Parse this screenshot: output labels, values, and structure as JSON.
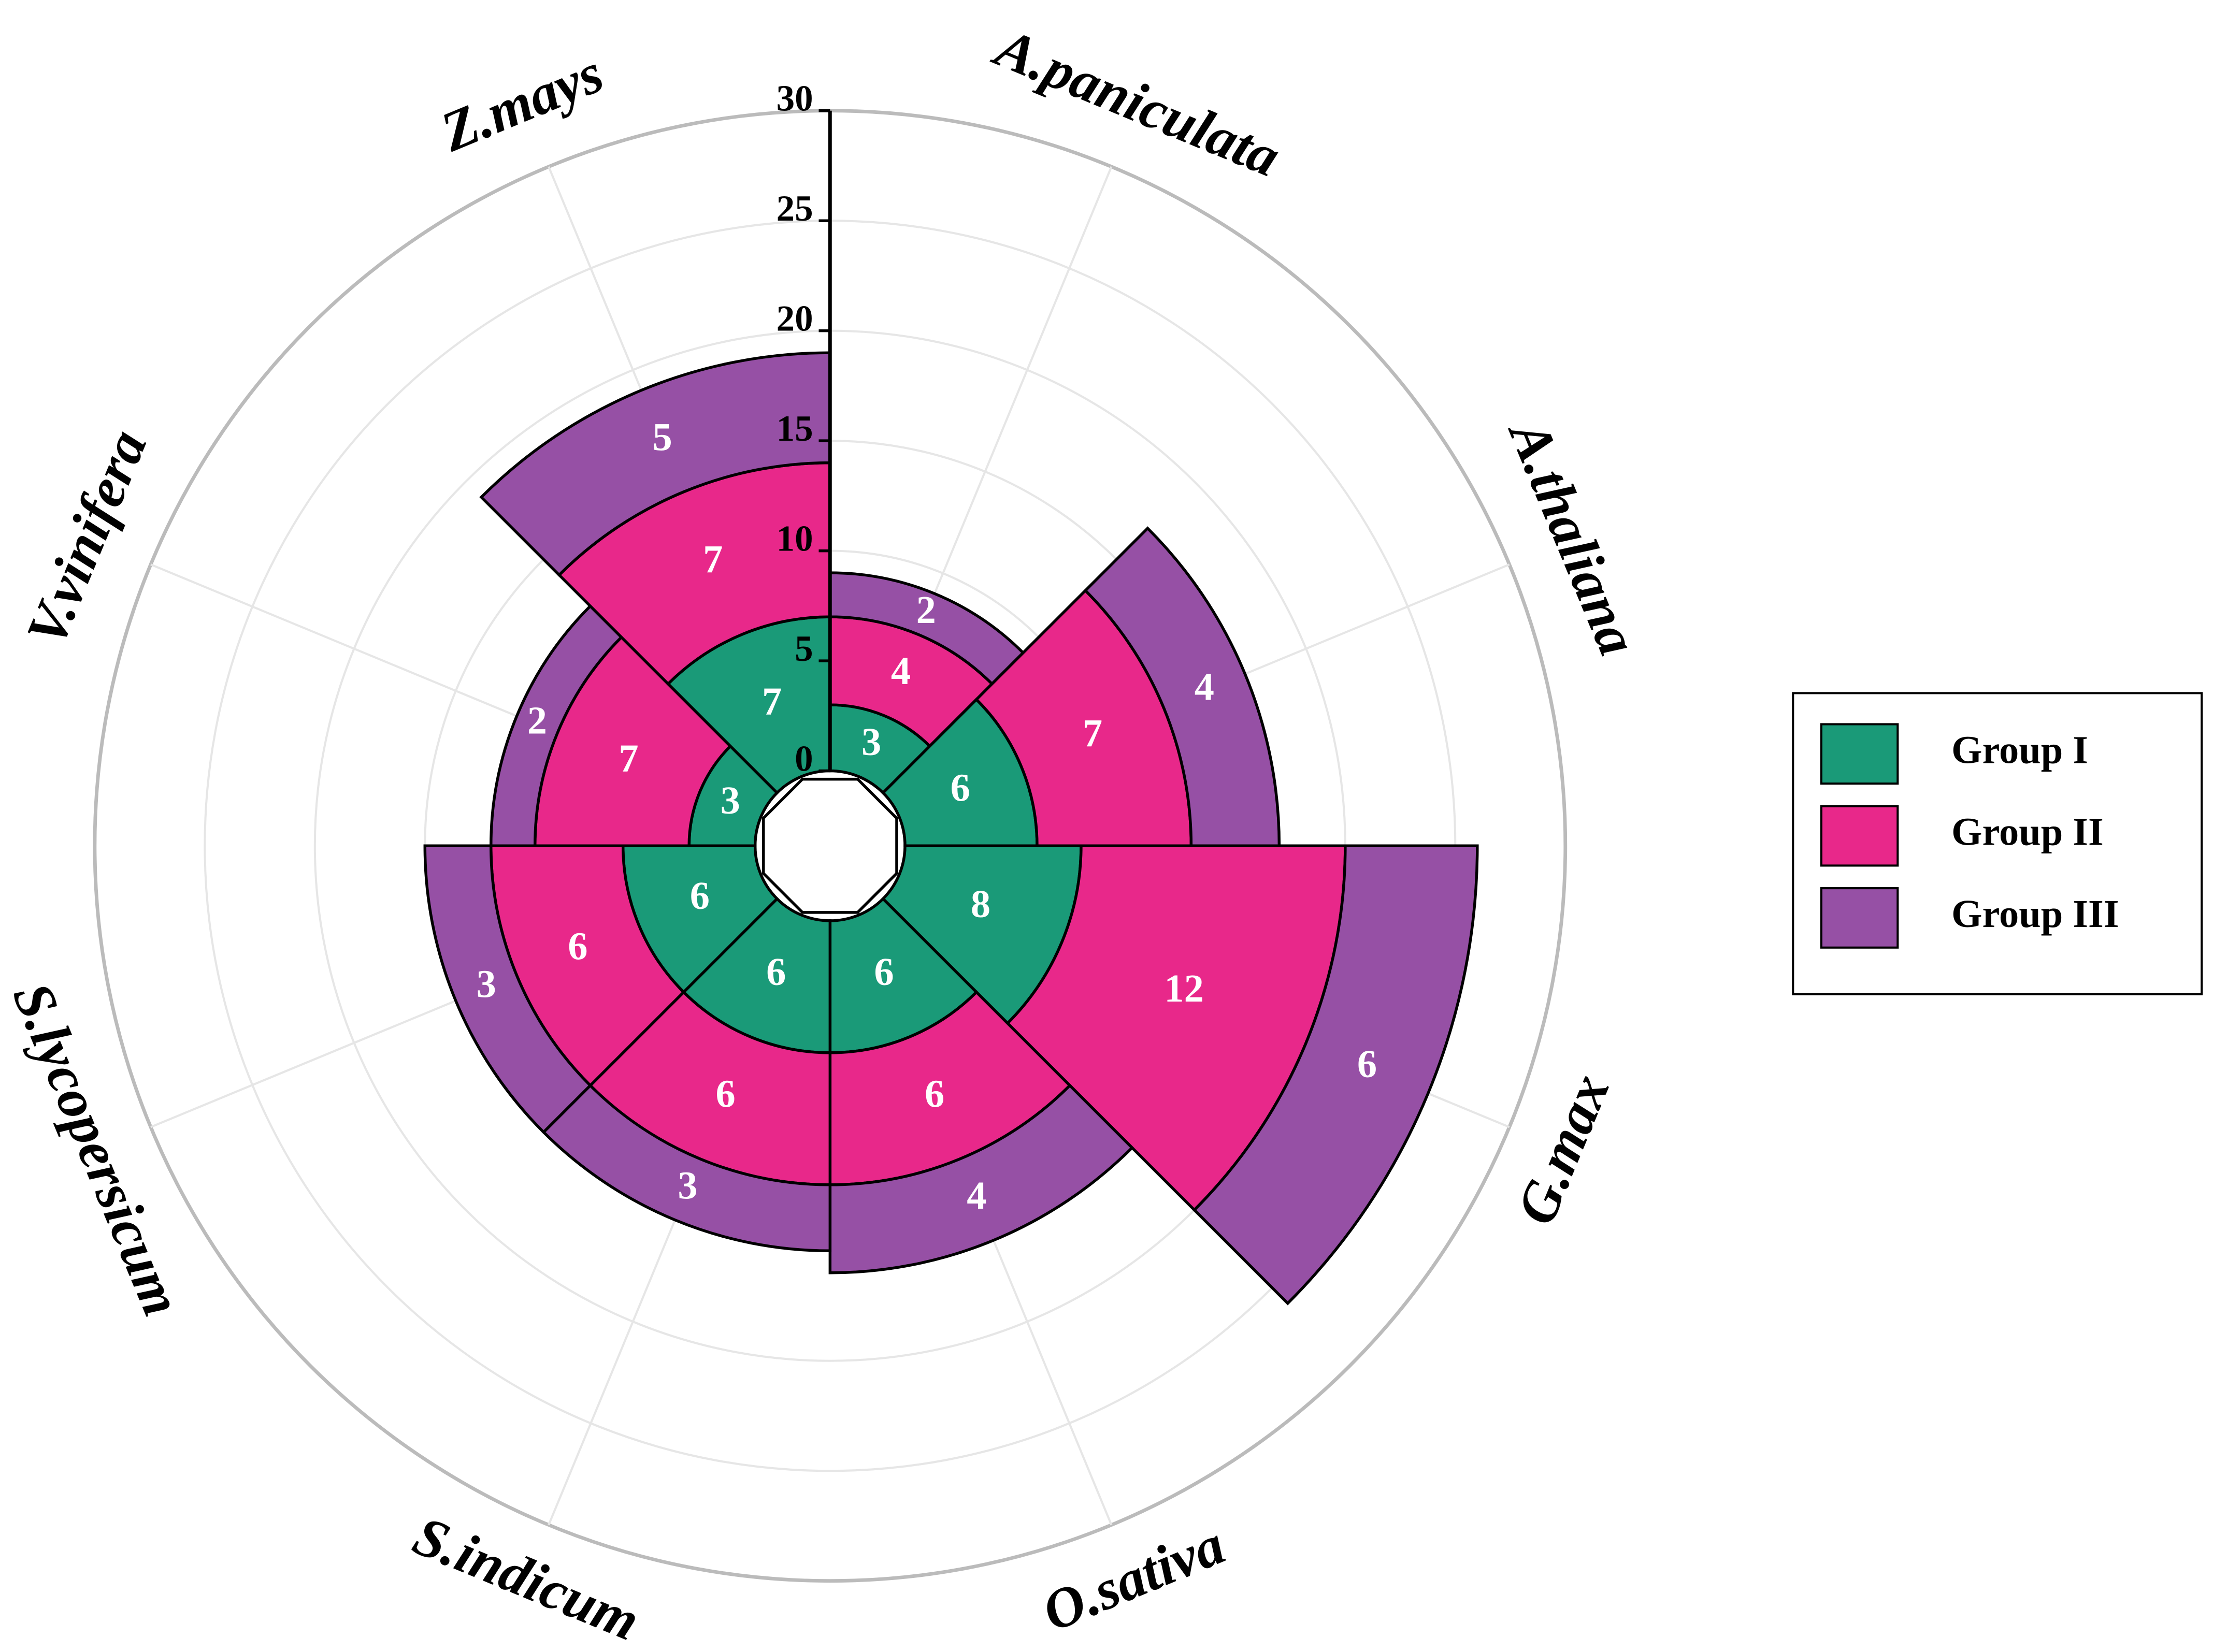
{
  "chart_data": {
    "type": "polar-stacked-bar",
    "categories": [
      "A.paniculata",
      "A.thaliana",
      "G.max",
      "O.sativa",
      "S.indicum",
      "S.lycopersicum",
      "V.vinifera",
      "Z.mays"
    ],
    "series": [
      {
        "name": "Group I",
        "color": "#1a9a78",
        "values": [
          3,
          6,
          8,
          6,
          6,
          6,
          3,
          7
        ]
      },
      {
        "name": "Group II",
        "color": "#e8288a",
        "values": [
          4,
          7,
          12,
          6,
          6,
          6,
          7,
          7
        ]
      },
      {
        "name": "Group III",
        "color": "#9650a5",
        "values": [
          2,
          4,
          6,
          4,
          3,
          3,
          2,
          5
        ]
      }
    ],
    "ylim": [
      0,
      30
    ],
    "yticks": [
      0,
      5,
      10,
      15,
      20,
      25,
      30
    ],
    "grid": true,
    "legend": "right"
  }
}
